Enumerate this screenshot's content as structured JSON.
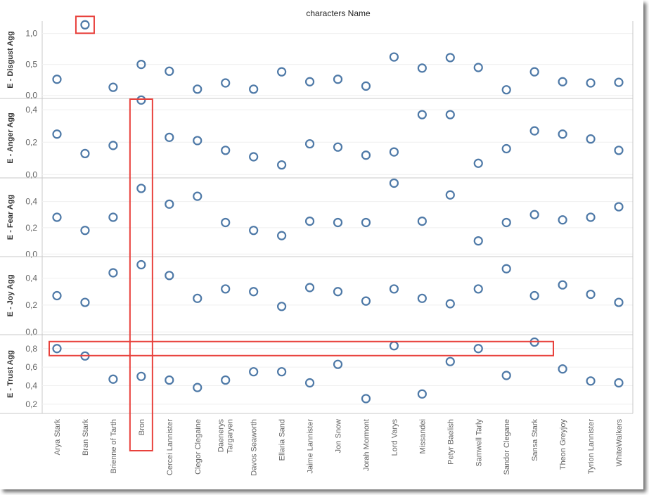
{
  "chart_data": {
    "type": "scatter",
    "title": "characters Name",
    "categories": [
      "Arya Stark",
      "Bran Stark",
      "Brienne of Tarth",
      "Bron",
      "Cercei Lannister",
      "Clegor Clegaine",
      "Daenerys Targaryen",
      "Davos Seaworth",
      "Ellaria Sand",
      "Jaime Lannister",
      "Jon Snow",
      "Jorah Mormont",
      "Lord Varys",
      "Missandei",
      "Petyr Baelish",
      "Samwell Tarly",
      "Sandor Clegane",
      "Sansa Stark",
      "Theon Greyjoy",
      "Tyrion Lannister",
      "WhiteWalkers"
    ],
    "marker_color": "#4e79a7",
    "highlight_color": "#e8413c",
    "panels": [
      {
        "name": "E - Disgust Agg",
        "ylim": [
          -0.05,
          1.2
        ],
        "ticks": [
          0.0,
          0.5,
          1.0
        ],
        "tick_labels": [
          "0,0",
          "0,5",
          "1,0"
        ],
        "values": [
          0.26,
          null,
          0.13,
          0.5,
          0.39,
          0.1,
          0.2,
          0.1,
          0.38,
          0.22,
          0.26,
          0.15,
          0.62,
          0.44,
          0.61,
          0.45,
          0.09,
          0.38,
          0.22,
          0.2,
          0.21
        ],
        "outlier": {
          "category": "Bran Stark",
          "value": 1.14
        }
      },
      {
        "name": "E - Anger Agg",
        "ylim": [
          -0.02,
          0.47
        ],
        "ticks": [
          0.0,
          0.2,
          0.4
        ],
        "tick_labels": [
          "0,0",
          "0,2",
          "0,4"
        ],
        "values": [
          0.25,
          0.13,
          0.18,
          0.46,
          0.23,
          0.21,
          0.15,
          0.11,
          0.06,
          0.19,
          0.17,
          0.12,
          0.14,
          0.37,
          0.37,
          0.07,
          0.16,
          0.27,
          0.25,
          0.22,
          0.15
        ]
      },
      {
        "name": "E - Fear Agg",
        "ylim": [
          -0.02,
          0.58
        ],
        "ticks": [
          0.0,
          0.2,
          0.4
        ],
        "tick_labels": [
          "0,0",
          "0,2",
          "0,4"
        ],
        "values": [
          0.28,
          0.18,
          0.28,
          0.5,
          0.38,
          0.44,
          0.24,
          0.18,
          0.14,
          0.25,
          0.24,
          0.24,
          0.54,
          0.25,
          0.45,
          0.1,
          0.24,
          0.3,
          0.26,
          0.28,
          0.36
        ]
      },
      {
        "name": "E - Joy Agg",
        "ylim": [
          -0.02,
          0.56
        ],
        "ticks": [
          0.0,
          0.2,
          0.4
        ],
        "tick_labels": [
          "0,0",
          "0,2",
          "0,4"
        ],
        "values": [
          0.27,
          0.22,
          0.44,
          0.5,
          0.42,
          0.25,
          0.32,
          0.3,
          0.19,
          0.33,
          0.3,
          0.23,
          0.32,
          0.25,
          0.21,
          0.32,
          0.47,
          0.27,
          0.35,
          0.28,
          0.22
        ]
      },
      {
        "name": "E - Trust Agg",
        "ylim": [
          0.1,
          0.95
        ],
        "ticks": [
          0.2,
          0.4,
          0.6,
          0.8
        ],
        "tick_labels": [
          "0,2",
          "0,4",
          "0,6",
          "0,8"
        ],
        "values": [
          0.8,
          0.72,
          0.47,
          0.5,
          0.46,
          0.38,
          0.46,
          0.55,
          0.55,
          0.43,
          0.63,
          0.26,
          0.83,
          0.31,
          0.66,
          0.8,
          0.51,
          0.87,
          0.58,
          0.45,
          0.43
        ]
      }
    ],
    "highlights": [
      "Bran Stark outlier in E - Disgust Agg",
      "Bron column across all panels",
      "E - Trust Agg values near 0,8"
    ]
  }
}
